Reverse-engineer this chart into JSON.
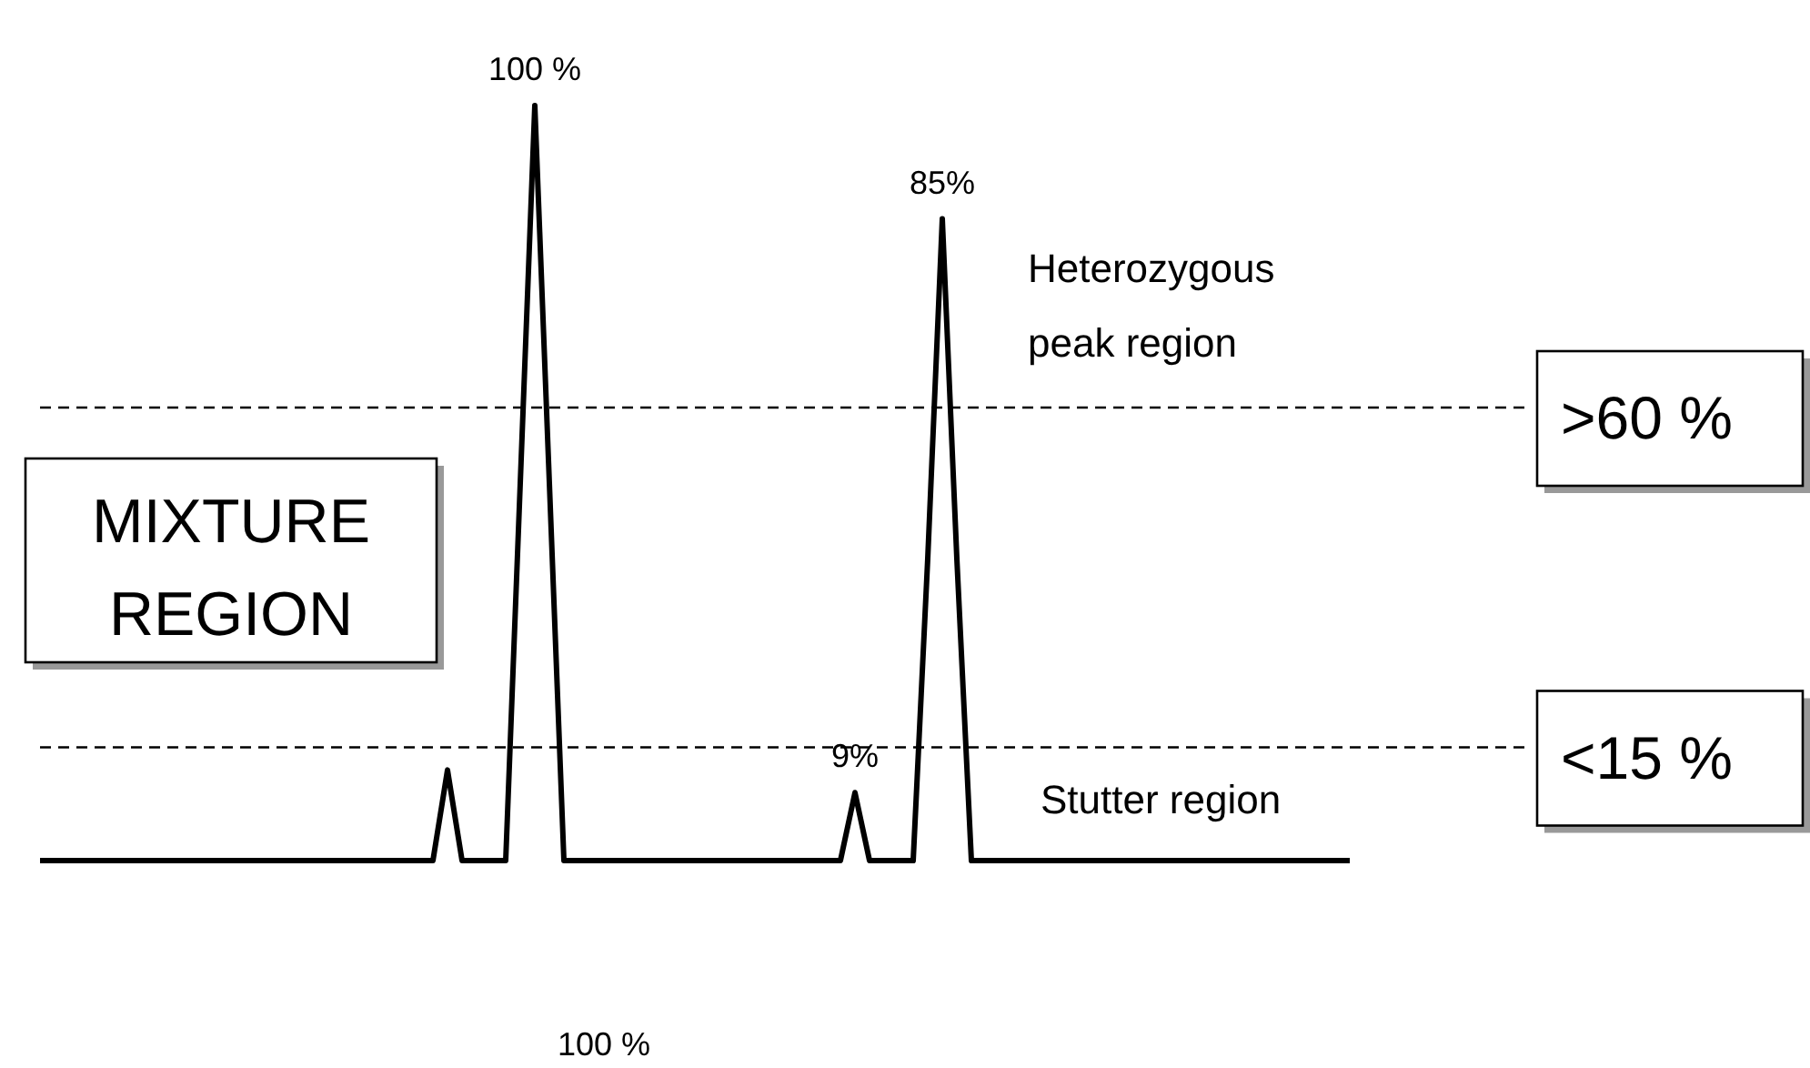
{
  "chart_data": {
    "type": "line",
    "tick_labels": false,
    "line_style": "solid",
    "categories": [
      null,
      null,
      null,
      null,
      null,
      null,
      null,
      null,
      null,
      null,
      null,
      null,
      null,
      null,
      null,
      null,
      null,
      null,
      null,
      null,
      null,
      null,
      null,
      null,
      null,
      null,
      null,
      null,
      null,
      null,
      null,
      null,
      null,
      null,
      null,
      null,
      null,
      null,
      null,
      null,
      null,
      null,
      null,
      null,
      null,
      null,
      null,
      null,
      null,
      null,
      null,
      null,
      null,
      null,
      null,
      null,
      null,
      null,
      null,
      null,
      null,
      null,
      null,
      null,
      null,
      null,
      null,
      null,
      null,
      null,
      null,
      null,
      null,
      null,
      null,
      null,
      null,
      null,
      null,
      null,
      null,
      null,
      null,
      null,
      null,
      null,
      null,
      null,
      null,
      null,
      null
    ],
    "series": [
      {
        "color": "#000000",
        "values": [
          0,
          0,
          0,
          0,
          0,
          0,
          0,
          0,
          0,
          0,
          0,
          0,
          0,
          0,
          0,
          0,
          0,
          0,
          0,
          0,
          0,
          0,
          0,
          0,
          0,
          0,
          0,
          0,
          12,
          0,
          0,
          0,
          0,
          50,
          100,
          50,
          0,
          0,
          0,
          0,
          0,
          0,
          0,
          0,
          0,
          0,
          0,
          0,
          0,
          0,
          0,
          0,
          0,
          0,
          0,
          0,
          9,
          0,
          0,
          0,
          0,
          40,
          85,
          40,
          0,
          0,
          0,
          0,
          0,
          0,
          0,
          0,
          0,
          0,
          0,
          0,
          0,
          0,
          0,
          0,
          0,
          0,
          0,
          0,
          0,
          0,
          0,
          0,
          0,
          0,
          0
        ],
        "value_labels": [
          null,
          null,
          null,
          null,
          null,
          null,
          null,
          null,
          null,
          null,
          null,
          null,
          null,
          null,
          null,
          null,
          null,
          null,
          null,
          null,
          null,
          null,
          null,
          null,
          null,
          null,
          null,
          null,
          null,
          null,
          null,
          null,
          null,
          null,
          "100 %",
          null,
          null,
          null,
          null,
          null,
          null,
          null,
          null,
          null,
          null,
          null,
          null,
          null,
          null,
          null,
          null,
          null,
          null,
          null,
          null,
          null,
          "9%",
          null,
          null,
          null,
          null,
          null,
          "85%",
          null,
          null,
          null,
          null,
          null,
          null,
          null,
          null,
          null,
          null,
          null,
          null,
          null,
          null,
          null,
          null,
          null,
          null,
          null,
          null,
          null,
          null,
          null,
          null,
          null,
          null,
          null,
          null
        ]
      }
    ],
    "ref_lines": [
      {
        "axis": "y",
        "value": 60,
        "label": ">60 %",
        "line_style": "dashed",
        "color": "#000000"
      },
      {
        "axis": "y",
        "value": 15,
        "label": "<15 %",
        "line_style": "dashed",
        "color": "#000000"
      }
    ],
    "annotations": [
      "Heterozygous peak region",
      "Stutter region",
      "MIXTURE REGION",
      "100 %"
    ]
  }
}
